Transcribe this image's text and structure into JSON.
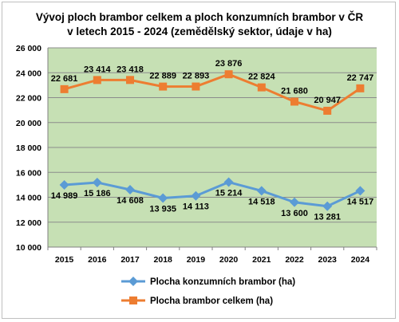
{
  "chart_data": {
    "type": "line",
    "title_line1": "Vývoj ploch brambor celkem a ploch konzumních brambor v ČR",
    "title_line2": "v letech 2015 - 2024 (zemědělský sektor, údaje v ha)",
    "categories": [
      "2015",
      "2016",
      "2017",
      "2018",
      "2019",
      "2020",
      "2021",
      "2022",
      "2023",
      "2024"
    ],
    "ylim": [
      10000,
      26000
    ],
    "ytick_step": 2000,
    "ytick_labels": [
      "10 000",
      "12 000",
      "14 000",
      "16 000",
      "18 000",
      "20 000",
      "22 000",
      "24 000",
      "26 000"
    ],
    "grid": true,
    "legend_position": "bottom",
    "plot_background": "#c6e0b4",
    "series": [
      {
        "name": "Plocha konzumních brambor (ha)",
        "color": "#5b9bd5",
        "marker": "diamond",
        "values": [
          14989,
          15186,
          14608,
          13935,
          14113,
          15214,
          14518,
          13600,
          13281,
          14517
        ],
        "labels": [
          "14 989",
          "15 186",
          "14 608",
          "13 935",
          "14 113",
          "15 214",
          "14 518",
          "13 600",
          "13 281",
          "14 517"
        ]
      },
      {
        "name": "Plocha brambor celkem (ha)",
        "color": "#ed7d31",
        "marker": "square",
        "values": [
          22681,
          23414,
          23418,
          22889,
          22893,
          23876,
          22824,
          21680,
          20947,
          22747
        ],
        "labels": [
          "22 681",
          "23 414",
          "23 418",
          "22 889",
          "22 893",
          "23 876",
          "22 824",
          "21 680",
          "20 947",
          "22 747"
        ]
      }
    ]
  }
}
